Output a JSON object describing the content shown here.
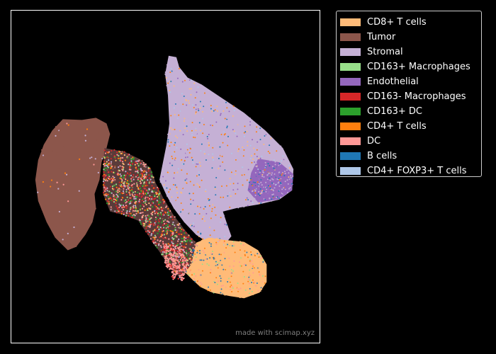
{
  "chart_data": {
    "type": "scatter",
    "title": "",
    "xlabel": "",
    "ylabel": "",
    "grid": false,
    "legend_position": "outside right, top",
    "background": "#000000",
    "series": [
      {
        "name": "CD8+ T cells",
        "color": "#ffbb78"
      },
      {
        "name": "Tumor",
        "color": "#8c564b"
      },
      {
        "name": "Stromal",
        "color": "#c5b0d5"
      },
      {
        "name": "CD163+ Macrophages",
        "color": "#98df8a"
      },
      {
        "name": "Endothelial",
        "color": "#9467bd"
      },
      {
        "name": "CD163- Macrophages",
        "color": "#d62728"
      },
      {
        "name": "CD163+ DC",
        "color": "#2ca02c"
      },
      {
        "name": "CD4+ T cells",
        "color": "#ff7f0e"
      },
      {
        "name": "DC",
        "color": "#ff9896"
      },
      {
        "name": "B cells",
        "color": "#1f77b4"
      },
      {
        "name": "CD4+ FOXP3+ T cells",
        "color": "#aec7e8"
      }
    ]
  },
  "watermark": "made with scimap.xyz"
}
